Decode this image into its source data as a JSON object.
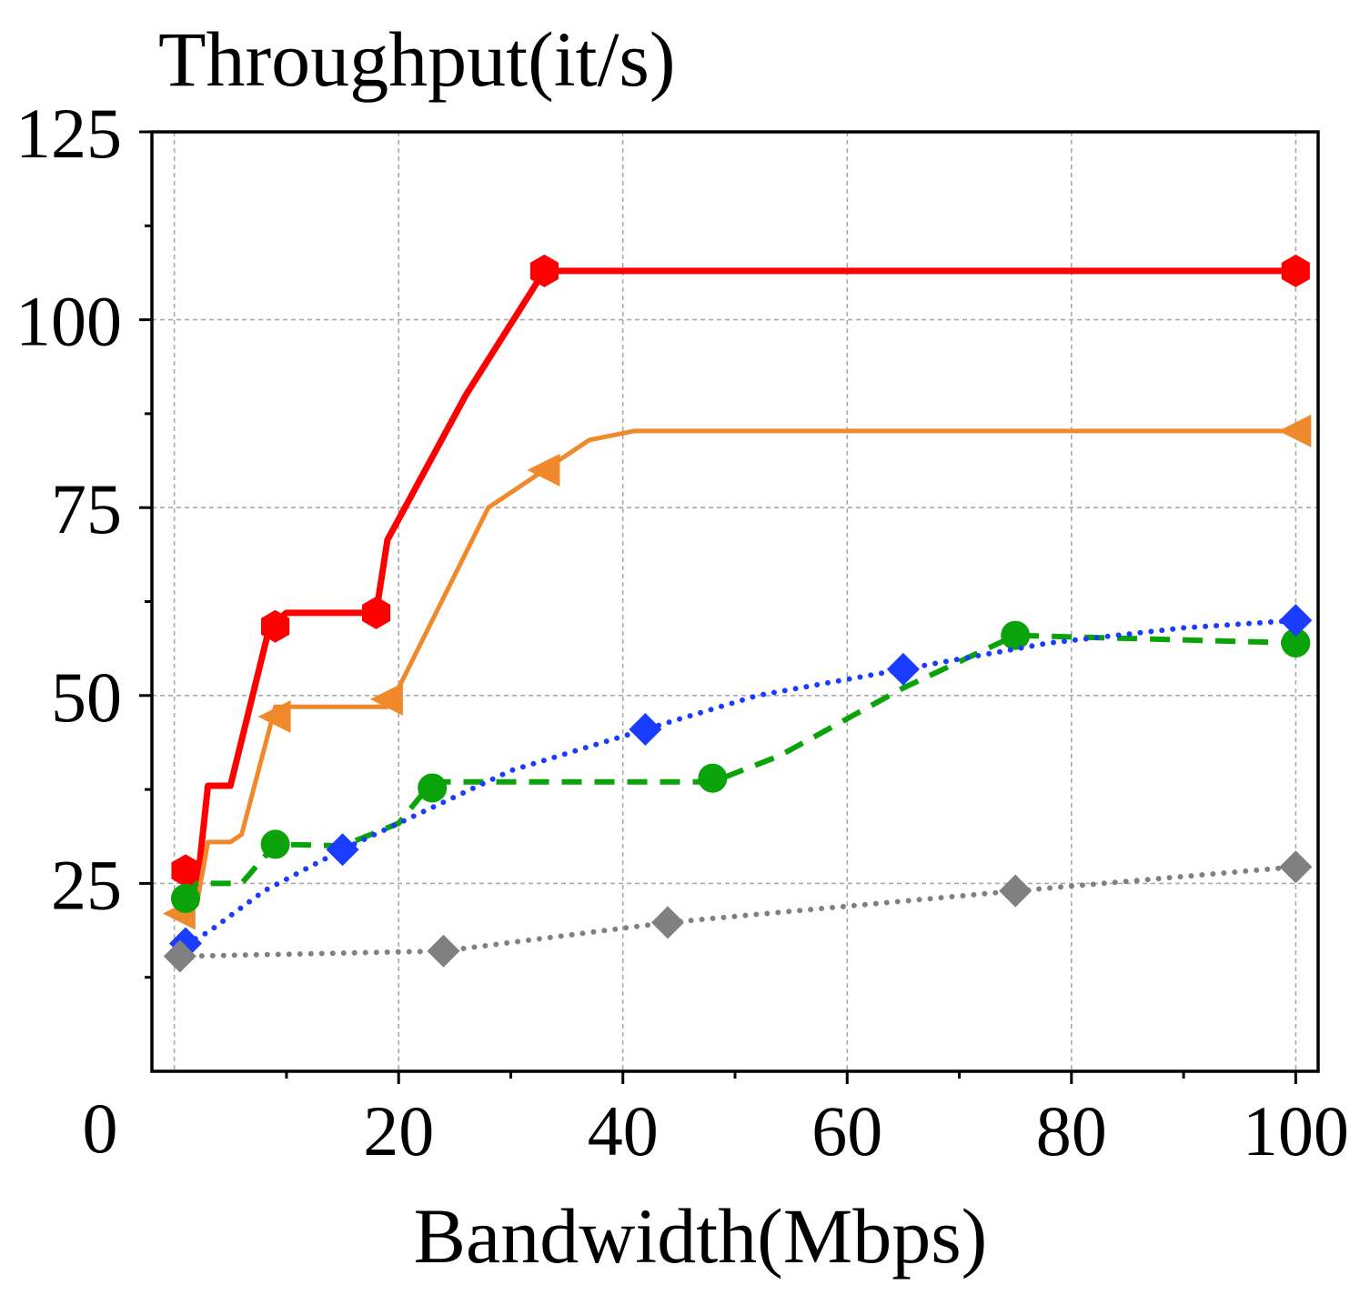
{
  "chart_data": {
    "type": "line",
    "title": "Throughput(it/s)",
    "xlabel": "Bandwidth(Mbps)",
    "ylabel": "",
    "xlim": [
      -2,
      102
    ],
    "ylim": [
      0,
      125
    ],
    "x_ticks": [
      20,
      40,
      60,
      80,
      100
    ],
    "x_tick_labels": [
      "20",
      "40",
      "60",
      "80",
      "100"
    ],
    "x_minor_ticks": [
      10,
      30,
      50,
      70,
      90
    ],
    "y_ticks": [
      25,
      50,
      75,
      100,
      125
    ],
    "y_tick_labels": [
      "25",
      "50",
      "75",
      "100",
      "125"
    ],
    "y_minor_ticks": [
      12.5,
      37.5,
      62.5,
      87.5,
      112.5
    ],
    "origin_label": "0",
    "x_grid": [
      0,
      20,
      40,
      60,
      80,
      100
    ],
    "y_grid": [
      25,
      50,
      75,
      100
    ],
    "grid": true,
    "series": [
      {
        "color": "#ff0000",
        "line_style": "solid",
        "marker": "hexagon",
        "line": [
          [
            1,
            26.7
          ],
          [
            2,
            24.2
          ],
          [
            3,
            38
          ],
          [
            5,
            38
          ],
          [
            8.5,
            59.2
          ],
          [
            10,
            61
          ],
          [
            18,
            61
          ],
          [
            19,
            70.7
          ],
          [
            26,
            90
          ],
          [
            33,
            106.5
          ],
          [
            100,
            106.5
          ]
        ],
        "markers": [
          [
            1,
            26.7
          ],
          [
            9,
            59.2
          ],
          [
            18,
            61
          ],
          [
            33,
            106.5
          ],
          [
            100,
            106.5
          ]
        ]
      },
      {
        "color": "#f0892b",
        "line_style": "solid",
        "marker": "triangle-left",
        "line": [
          [
            0.5,
            21
          ],
          [
            2,
            22.2
          ],
          [
            3,
            30.5
          ],
          [
            5,
            30.5
          ],
          [
            6,
            31.5
          ],
          [
            9,
            48.5
          ],
          [
            19,
            48.5
          ],
          [
            20,
            51
          ],
          [
            28,
            75
          ],
          [
            33,
            80
          ],
          [
            37,
            84
          ],
          [
            41,
            85.2
          ],
          [
            100,
            85.2
          ]
        ],
        "markers": [
          [
            0.5,
            21
          ],
          [
            9,
            47.2
          ],
          [
            19,
            49.5
          ],
          [
            33,
            80
          ],
          [
            100,
            85.2
          ]
        ]
      },
      {
        "color": "#0aa40a",
        "line_style": "dashed",
        "marker": "circle",
        "line": [
          [
            1,
            23
          ],
          [
            2,
            25
          ],
          [
            6,
            25
          ],
          [
            9,
            30.2
          ],
          [
            15,
            30
          ],
          [
            20,
            33
          ],
          [
            23,
            38.5
          ],
          [
            48,
            38.5
          ],
          [
            54,
            42
          ],
          [
            65,
            51
          ],
          [
            75,
            58
          ],
          [
            100,
            57
          ]
        ],
        "markers": [
          [
            1,
            23
          ],
          [
            9,
            30.2
          ],
          [
            23,
            37.7
          ],
          [
            48,
            39
          ],
          [
            75,
            58
          ],
          [
            100,
            57
          ]
        ]
      },
      {
        "color": "#1a3cff",
        "line_style": "dotted",
        "marker": "diamond",
        "line": [
          [
            1,
            17
          ],
          [
            3,
            18.5
          ],
          [
            8,
            24
          ],
          [
            15,
            29.5
          ],
          [
            30,
            40
          ],
          [
            42,
            45.5
          ],
          [
            52,
            50
          ],
          [
            65,
            53.5
          ],
          [
            78,
            57
          ],
          [
            90,
            59
          ],
          [
            100,
            60
          ]
        ],
        "markers": [
          [
            1,
            17
          ],
          [
            15,
            29.5
          ],
          [
            42,
            45.5
          ],
          [
            65,
            53.5
          ],
          [
            100,
            60
          ]
        ]
      },
      {
        "color": "#808080",
        "line_style": "dotted",
        "marker": "diamond",
        "line": [
          [
            0.5,
            15.3
          ],
          [
            24,
            16
          ],
          [
            44,
            19.8
          ],
          [
            75,
            24
          ],
          [
            100,
            27.2
          ]
        ],
        "markers": [
          [
            0.5,
            15.3
          ],
          [
            24,
            16
          ],
          [
            44,
            19.8
          ],
          [
            75,
            24
          ],
          [
            100,
            27.2
          ]
        ]
      }
    ]
  }
}
